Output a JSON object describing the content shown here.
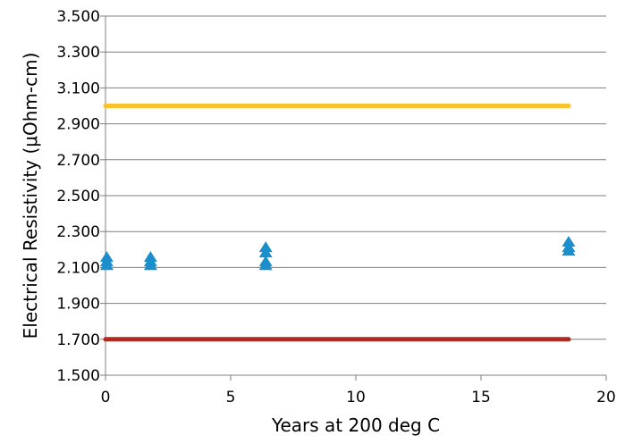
{
  "chart_data": {
    "type": "scatter",
    "title": "",
    "xlabel": "Years at 200 deg C",
    "ylabel": "Electrical Resistivity (μOhm-cm)",
    "xlim": [
      0,
      20
    ],
    "ylim": [
      1.5,
      3.5
    ],
    "x_ticks": [
      0,
      5,
      10,
      15,
      20
    ],
    "x_tick_labels": [
      "0",
      "5",
      "10",
      "15",
      "20"
    ],
    "y_ticks": [
      1.5,
      1.7,
      1.9,
      2.1,
      2.3,
      2.5,
      2.7,
      2.9,
      3.1,
      3.3,
      3.5
    ],
    "y_tick_labels": [
      "1.500",
      "1.700",
      "1.900",
      "2.100",
      "2.300",
      "2.500",
      "2.700",
      "2.900",
      "3.100",
      "3.300",
      "3.500"
    ],
    "grid": "horizontal",
    "legend": "none",
    "colors": {
      "upper_line": "#F9C22E",
      "lower_line": "#B5281E",
      "markers": "#1A8FCB",
      "grid": "#7f7f7f"
    },
    "reference_lines": [
      {
        "x": [
          0,
          18.5
        ],
        "y": [
          3.0,
          3.0
        ],
        "color": "#F9C22E"
      },
      {
        "x": [
          0,
          18.5
        ],
        "y": [
          1.7,
          1.7
        ],
        "color": "#B5281E"
      }
    ],
    "series": [
      {
        "marker": "triangle",
        "x": [
          0.05,
          0.05,
          0.05,
          1.8,
          1.8,
          1.8,
          6.4,
          6.4,
          6.4,
          6.4,
          18.5,
          18.5,
          18.5
        ],
        "y": [
          2.11,
          2.13,
          2.155,
          2.11,
          2.13,
          2.155,
          2.11,
          2.13,
          2.18,
          2.21,
          2.19,
          2.21,
          2.24
        ]
      }
    ]
  }
}
